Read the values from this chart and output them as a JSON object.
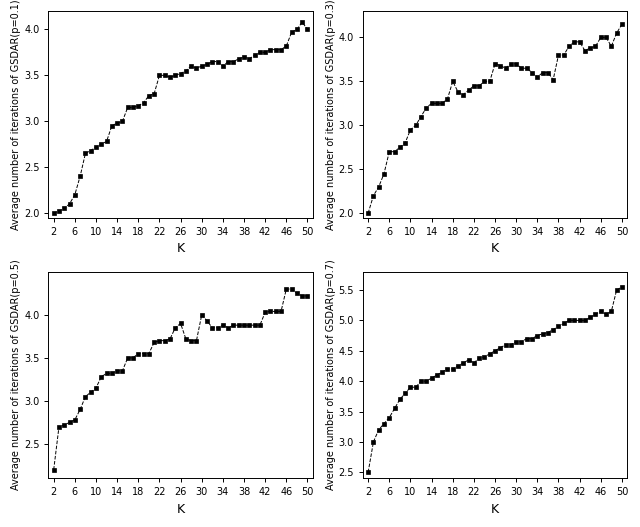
{
  "subplots": [
    {
      "ylabel": "Average number of iterations of GSDAR(p=0.1)",
      "xlabel": "K",
      "x": [
        2,
        3,
        4,
        5,
        6,
        7,
        8,
        9,
        10,
        11,
        12,
        13,
        14,
        15,
        16,
        17,
        18,
        19,
        20,
        21,
        22,
        23,
        24,
        25,
        26,
        27,
        28,
        29,
        30,
        31,
        32,
        33,
        34,
        35,
        36,
        37,
        38,
        39,
        40,
        41,
        42,
        43,
        44,
        45,
        46,
        47,
        48,
        49,
        50
      ],
      "y": [
        2.0,
        2.02,
        2.05,
        2.1,
        2.2,
        2.4,
        2.65,
        2.68,
        2.72,
        2.75,
        2.78,
        2.95,
        2.98,
        3.0,
        3.15,
        3.15,
        3.17,
        3.2,
        3.28,
        3.3,
        3.5,
        3.5,
        3.48,
        3.5,
        3.52,
        3.55,
        3.6,
        3.58,
        3.6,
        3.62,
        3.65,
        3.65,
        3.6,
        3.65,
        3.65,
        3.68,
        3.7,
        3.68,
        3.72,
        3.75,
        3.75,
        3.78,
        3.78,
        3.78,
        3.82,
        3.97,
        4.0,
        4.08,
        4.0
      ],
      "ylim": [
        1.95,
        4.2
      ],
      "yticks": [
        2.0,
        2.5,
        3.0,
        3.5,
        4.0
      ],
      "xticks": [
        2,
        6,
        10,
        14,
        18,
        22,
        26,
        30,
        34,
        38,
        42,
        46,
        50
      ]
    },
    {
      "ylabel": "Average number of iterations of GSDAR(p=0.3)",
      "xlabel": "K",
      "x": [
        2,
        3,
        4,
        5,
        6,
        7,
        8,
        9,
        10,
        11,
        12,
        13,
        14,
        15,
        16,
        17,
        18,
        19,
        20,
        21,
        22,
        23,
        24,
        25,
        26,
        27,
        28,
        29,
        30,
        31,
        32,
        33,
        34,
        35,
        36,
        37,
        38,
        39,
        40,
        41,
        42,
        43,
        44,
        45,
        46,
        47,
        48,
        49,
        50
      ],
      "y": [
        2.0,
        2.2,
        2.3,
        2.45,
        2.7,
        2.7,
        2.75,
        2.8,
        2.95,
        3.0,
        3.1,
        3.2,
        3.25,
        3.25,
        3.25,
        3.3,
        3.5,
        3.38,
        3.35,
        3.4,
        3.45,
        3.45,
        3.5,
        3.5,
        3.7,
        3.68,
        3.65,
        3.7,
        3.7,
        3.65,
        3.65,
        3.6,
        3.55,
        3.6,
        3.6,
        3.52,
        3.8,
        3.8,
        3.9,
        3.95,
        3.95,
        3.85,
        3.88,
        3.9,
        4.0,
        4.0,
        3.9,
        4.05,
        4.15
      ],
      "ylim": [
        1.95,
        4.3
      ],
      "yticks": [
        2.0,
        2.5,
        3.0,
        3.5,
        4.0
      ],
      "xticks": [
        2,
        6,
        10,
        14,
        18,
        22,
        26,
        30,
        34,
        38,
        42,
        46,
        50
      ]
    },
    {
      "ylabel": "Average number of iterations of GSDAR(p=0.5)",
      "xlabel": "K",
      "x": [
        2,
        3,
        4,
        5,
        6,
        7,
        8,
        9,
        10,
        11,
        12,
        13,
        14,
        15,
        16,
        17,
        18,
        19,
        20,
        21,
        22,
        23,
        24,
        25,
        26,
        27,
        28,
        29,
        30,
        31,
        32,
        33,
        34,
        35,
        36,
        37,
        38,
        39,
        40,
        41,
        42,
        43,
        44,
        45,
        46,
        47,
        48,
        49,
        50
      ],
      "y": [
        2.2,
        2.7,
        2.72,
        2.75,
        2.78,
        2.9,
        3.05,
        3.1,
        3.15,
        3.28,
        3.32,
        3.32,
        3.35,
        3.35,
        3.5,
        3.5,
        3.55,
        3.55,
        3.55,
        3.68,
        3.7,
        3.7,
        3.72,
        3.85,
        3.9,
        3.72,
        3.7,
        3.7,
        4.0,
        3.93,
        3.85,
        3.85,
        3.88,
        3.85,
        3.88,
        3.88,
        3.88,
        3.88,
        3.88,
        3.88,
        4.03,
        4.04,
        4.04,
        4.04,
        4.3,
        4.3,
        4.25,
        4.22,
        4.22
      ],
      "ylim": [
        2.1,
        4.5
      ],
      "yticks": [
        2.5,
        3.0,
        3.5,
        4.0
      ],
      "xticks": [
        2,
        6,
        10,
        14,
        18,
        22,
        26,
        30,
        34,
        38,
        42,
        46,
        50
      ]
    },
    {
      "ylabel": "Average number of iterations of GSDAR(p=0.7)",
      "xlabel": "K",
      "x": [
        2,
        3,
        4,
        5,
        6,
        7,
        8,
        9,
        10,
        11,
        12,
        13,
        14,
        15,
        16,
        17,
        18,
        19,
        20,
        21,
        22,
        23,
        24,
        25,
        26,
        27,
        28,
        29,
        30,
        31,
        32,
        33,
        34,
        35,
        36,
        37,
        38,
        39,
        40,
        41,
        42,
        43,
        44,
        45,
        46,
        47,
        48,
        49,
        50
      ],
      "y": [
        2.5,
        3.0,
        3.2,
        3.3,
        3.4,
        3.55,
        3.7,
        3.8,
        3.9,
        3.9,
        4.0,
        4.0,
        4.05,
        4.1,
        4.15,
        4.2,
        4.2,
        4.25,
        4.3,
        4.35,
        4.3,
        4.38,
        4.4,
        4.45,
        4.5,
        4.55,
        4.6,
        4.6,
        4.65,
        4.65,
        4.7,
        4.7,
        4.75,
        4.78,
        4.8,
        4.85,
        4.9,
        4.95,
        5.0,
        5.0,
        5.0,
        5.0,
        5.05,
        5.1,
        5.15,
        5.1,
        5.15,
        5.5,
        5.55
      ],
      "ylim": [
        2.4,
        5.8
      ],
      "yticks": [
        2.5,
        3.0,
        3.5,
        4.0,
        4.5,
        5.0,
        5.5
      ],
      "xticks": [
        2,
        6,
        10,
        14,
        18,
        22,
        26,
        30,
        34,
        38,
        42,
        46,
        50
      ]
    }
  ],
  "bg_color": "#ffffff",
  "line_color": "#000000",
  "marker": "s",
  "marker_size": 3.0,
  "line_style": "--",
  "line_width": 0.7
}
